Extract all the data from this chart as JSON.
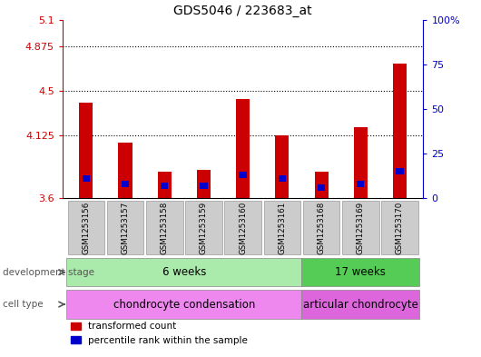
{
  "title": "GDS5046 / 223683_at",
  "samples": [
    "GSM1253156",
    "GSM1253157",
    "GSM1253158",
    "GSM1253159",
    "GSM1253160",
    "GSM1253161",
    "GSM1253168",
    "GSM1253169",
    "GSM1253170"
  ],
  "transformed_count": [
    4.4,
    4.07,
    3.82,
    3.84,
    4.43,
    4.13,
    3.82,
    4.2,
    4.73
  ],
  "percentile_rank": [
    11,
    8,
    7,
    7,
    13,
    11,
    6,
    8,
    15
  ],
  "ymin": 3.6,
  "ymax": 5.1,
  "yticks": [
    3.6,
    4.125,
    4.5,
    4.875,
    5.1
  ],
  "ytick_labels": [
    "3.6",
    "4.125",
    "4.5",
    "4.875",
    "5.1"
  ],
  "right_yticks": [
    0,
    25,
    50,
    75,
    100
  ],
  "right_ytick_labels": [
    "0",
    "25",
    "50",
    "75",
    "100%"
  ],
  "bar_color_red": "#cc0000",
  "bar_color_blue": "#0000cc",
  "bar_width": 0.35,
  "development_stage_groups": [
    {
      "label": "6 weeks",
      "start": 0,
      "end": 5,
      "color": "#aaeaaa"
    },
    {
      "label": "17 weeks",
      "start": 6,
      "end": 8,
      "color": "#55cc55"
    }
  ],
  "cell_type_groups": [
    {
      "label": "chondrocyte condensation",
      "start": 0,
      "end": 5,
      "color": "#ee88ee"
    },
    {
      "label": "articular chondrocyte",
      "start": 6,
      "end": 8,
      "color": "#dd66dd"
    }
  ],
  "dev_stage_label": "development stage",
  "cell_type_label": "cell type",
  "legend_red_label": "transformed count",
  "legend_blue_label": "percentile rank within the sample",
  "axis_left_color": "#cc0000",
  "axis_right_color": "#0000cc"
}
